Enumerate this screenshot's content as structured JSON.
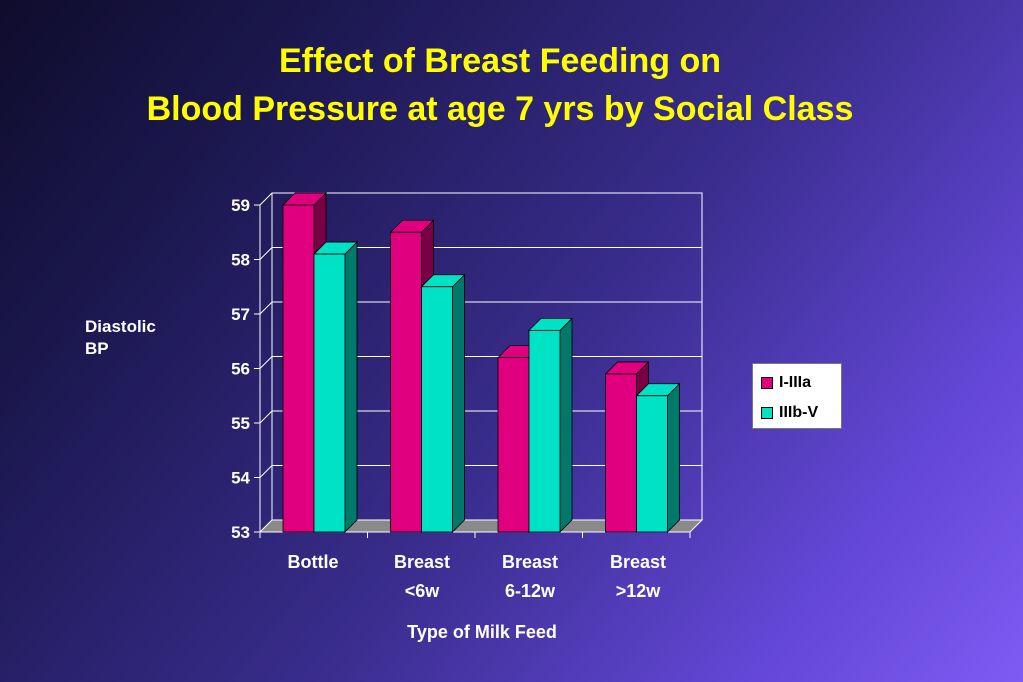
{
  "slide": {
    "title_line1": "Effect of Breast Feeding on",
    "title_line2": "Blood Pressure at age 7 yrs by Social Class"
  },
  "chart_data": {
    "type": "bar",
    "style": "3d clustered columns",
    "title": "Effect of Breast Feeding on Blood Pressure at age 7 yrs by Social Class",
    "ylabel_lines": [
      "Diastolic",
      "BP"
    ],
    "xlabel": "Type of Milk Feed",
    "categories": [
      {
        "label": [
          "Bottle"
        ]
      },
      {
        "label": [
          "Breast",
          "<6w"
        ]
      },
      {
        "label": [
          "Breast",
          "6-12w"
        ]
      },
      {
        "label": [
          "Breast",
          ">12w"
        ]
      }
    ],
    "series": [
      {
        "name": "I-IIIa",
        "color": "#e0007f",
        "side_color": "#7a0045",
        "values": [
          59.0,
          58.5,
          56.2,
          55.9
        ]
      },
      {
        "name": "IIIb-V",
        "color": "#00e2c6",
        "side_color": "#00786a",
        "values": [
          58.1,
          57.5,
          56.7,
          55.5
        ]
      }
    ],
    "ylim": [
      53,
      59
    ],
    "yticks": [
      53,
      54,
      55,
      56,
      57,
      58,
      59
    ],
    "grid": true,
    "legend_position": "right"
  }
}
